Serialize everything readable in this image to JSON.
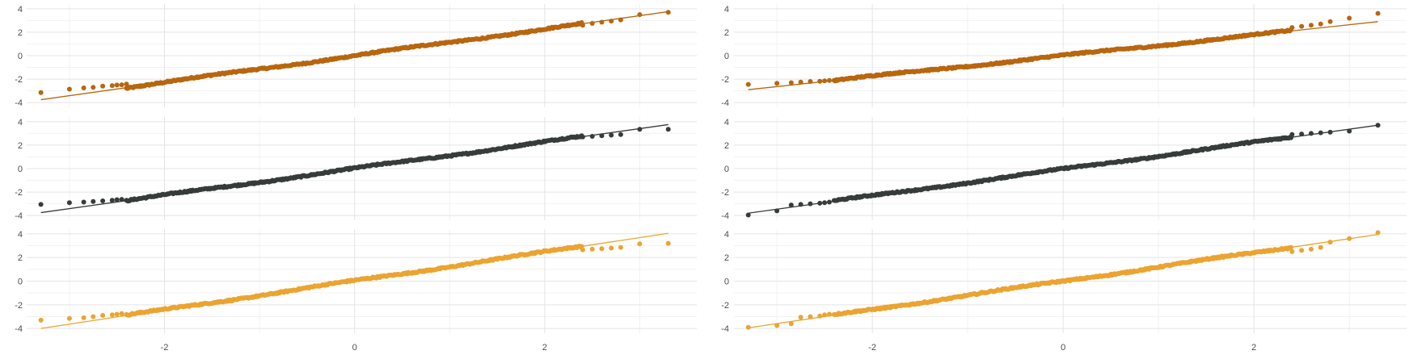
{
  "chart_data": [
    {
      "type": "scatter",
      "subtype": "qq-facet-column",
      "x_ticks": [
        "-2",
        "0",
        "2"
      ],
      "y_ticks": [
        "-4",
        "-2",
        "0",
        "2",
        "4"
      ],
      "xlim": [
        -3.45,
        3.6
      ],
      "ylim": [
        -4.4,
        4.4
      ],
      "grid": true,
      "facets": [
        {
          "color": "#b8660f",
          "line": [
            -3.3,
            -3.75,
            3.3,
            3.75
          ],
          "low_tail": [
            [
              -3.3,
              -3.15
            ],
            [
              -3.0,
              -2.85
            ],
            [
              -2.85,
              -2.75
            ],
            [
              -2.75,
              -2.7
            ],
            [
              -2.65,
              -2.6
            ],
            [
              -2.55,
              -2.55
            ],
            [
              -2.5,
              -2.5
            ],
            [
              -2.45,
              -2.48
            ],
            [
              -2.4,
              -2.42
            ]
          ],
          "high_tail": [
            [
              2.4,
              2.6
            ],
            [
              2.5,
              2.75
            ],
            [
              2.6,
              2.85
            ],
            [
              2.7,
              2.95
            ],
            [
              2.8,
              3.05
            ],
            [
              3.0,
              3.5
            ],
            [
              3.3,
              3.7
            ]
          ]
        },
        {
          "color": "#363c3b",
          "line": [
            -3.3,
            -3.75,
            3.3,
            3.75
          ],
          "low_tail": [
            [
              -3.3,
              -3.05
            ],
            [
              -3.0,
              -2.9
            ],
            [
              -2.85,
              -2.85
            ],
            [
              -2.75,
              -2.8
            ],
            [
              -2.65,
              -2.75
            ],
            [
              -2.55,
              -2.7
            ],
            [
              -2.5,
              -2.65
            ],
            [
              -2.45,
              -2.62
            ]
          ],
          "high_tail": [
            [
              2.4,
              2.7
            ],
            [
              2.5,
              2.75
            ],
            [
              2.6,
              2.8
            ],
            [
              2.7,
              2.85
            ],
            [
              2.8,
              2.9
            ],
            [
              3.0,
              3.35
            ],
            [
              3.3,
              3.35
            ]
          ]
        },
        {
          "color": "#eba431",
          "line": [
            -3.3,
            -4.0,
            3.3,
            4.05
          ],
          "low_tail": [
            [
              -3.3,
              -3.3
            ],
            [
              -3.0,
              -3.15
            ],
            [
              -2.85,
              -3.1
            ],
            [
              -2.75,
              -3.0
            ],
            [
              -2.65,
              -2.9
            ],
            [
              -2.55,
              -2.85
            ],
            [
              -2.5,
              -2.8
            ],
            [
              -2.45,
              -2.75
            ]
          ],
          "high_tail": [
            [
              2.4,
              2.65
            ],
            [
              2.5,
              2.7
            ],
            [
              2.6,
              2.75
            ],
            [
              2.7,
              2.8
            ],
            [
              2.8,
              2.85
            ],
            [
              3.0,
              3.15
            ],
            [
              3.3,
              3.2
            ]
          ]
        }
      ]
    },
    {
      "type": "scatter",
      "subtype": "qq-facet-column",
      "x_ticks": [
        "-2",
        "0",
        "2"
      ],
      "y_ticks": [
        "-4",
        "-2",
        "0",
        "2",
        "4"
      ],
      "xlim": [
        -3.45,
        3.6
      ],
      "ylim": [
        -4.4,
        4.4
      ],
      "grid": true,
      "facets": [
        {
          "color": "#b8660f",
          "line": [
            -3.3,
            -2.9,
            3.3,
            2.9
          ],
          "low_tail": [
            [
              -3.3,
              -2.45
            ],
            [
              -3.0,
              -2.35
            ],
            [
              -2.85,
              -2.3
            ],
            [
              -2.75,
              -2.25
            ],
            [
              -2.65,
              -2.2
            ],
            [
              -2.55,
              -2.18
            ],
            [
              -2.5,
              -2.15
            ],
            [
              -2.45,
              -2.12
            ]
          ],
          "high_tail": [
            [
              2.4,
              2.4
            ],
            [
              2.5,
              2.5
            ],
            [
              2.6,
              2.6
            ],
            [
              2.7,
              2.7
            ],
            [
              2.8,
              2.9
            ],
            [
              3.0,
              3.2
            ],
            [
              3.3,
              3.6
            ]
          ]
        },
        {
          "color": "#363c3b",
          "line": [
            -3.3,
            -3.8,
            3.3,
            3.7
          ],
          "low_tail": [
            [
              -3.3,
              -3.95
            ],
            [
              -3.0,
              -3.6
            ],
            [
              -2.85,
              -3.1
            ],
            [
              -2.75,
              -3.05
            ],
            [
              -2.65,
              -3.0
            ],
            [
              -2.55,
              -2.95
            ],
            [
              -2.5,
              -2.9
            ],
            [
              -2.45,
              -2.85
            ]
          ],
          "high_tail": [
            [
              2.4,
              2.9
            ],
            [
              2.5,
              2.95
            ],
            [
              2.6,
              3.0
            ],
            [
              2.7,
              3.05
            ],
            [
              2.8,
              3.1
            ],
            [
              3.0,
              3.2
            ],
            [
              3.3,
              3.7
            ]
          ]
        },
        {
          "color": "#eba431",
          "line": [
            -3.3,
            -3.95,
            3.3,
            3.95
          ],
          "low_tail": [
            [
              -3.3,
              -3.9
            ],
            [
              -3.0,
              -3.75
            ],
            [
              -2.85,
              -3.6
            ],
            [
              -2.75,
              -3.05
            ],
            [
              -2.65,
              -3.0
            ],
            [
              -2.55,
              -2.95
            ],
            [
              -2.5,
              -2.85
            ],
            [
              -2.45,
              -2.8
            ]
          ],
          "high_tail": [
            [
              2.4,
              2.5
            ],
            [
              2.5,
              2.6
            ],
            [
              2.6,
              2.7
            ],
            [
              2.7,
              2.85
            ],
            [
              2.8,
              3.3
            ],
            [
              3.0,
              3.6
            ],
            [
              3.3,
              4.1
            ]
          ]
        }
      ]
    }
  ]
}
